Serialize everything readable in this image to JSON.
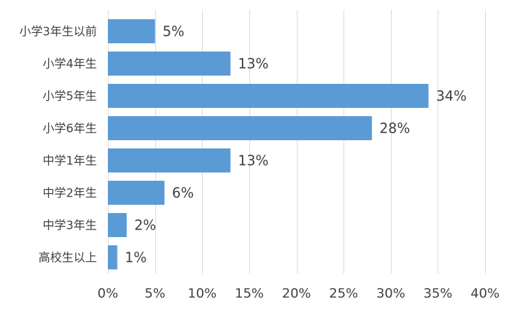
{
  "chart_data": {
    "type": "bar",
    "orientation": "horizontal",
    "categories": [
      "小学3年生以前",
      "小学4年生",
      "小学5年生",
      "小学6年生",
      "中学1年生",
      "中学2年生",
      "中学3年生",
      "高校生以上"
    ],
    "values": [
      5,
      13,
      34,
      28,
      13,
      6,
      2,
      1
    ],
    "data_labels": [
      "5%",
      "13%",
      "34%",
      "28%",
      "13%",
      "6%",
      "2%",
      "1%"
    ],
    "x_ticks": [
      0,
      5,
      10,
      15,
      20,
      25,
      30,
      35,
      40
    ],
    "x_tick_labels": [
      "0%",
      "5%",
      "10%",
      "15%",
      "20%",
      "25%",
      "30%",
      "35%",
      "40%"
    ],
    "xlim": [
      0,
      40
    ],
    "grid": "vertical",
    "legend": "none",
    "title": "",
    "xlabel": "",
    "ylabel": "",
    "colors": {
      "bar": "#5b9bd5",
      "grid": "#d9d9d9",
      "text": "#404040",
      "background": "#ffffff"
    }
  }
}
